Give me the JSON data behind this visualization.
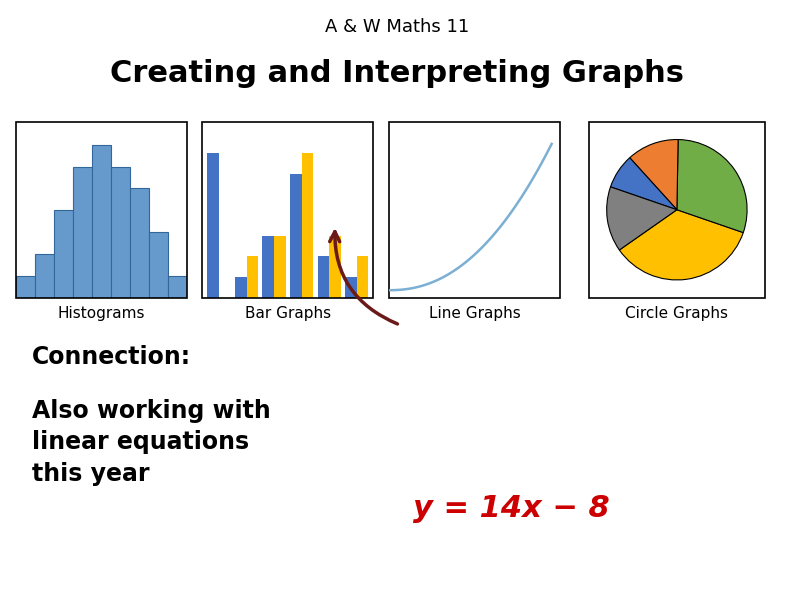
{
  "title_small": "A & W Maths 11",
  "title_large": "Creating and Interpreting Graphs",
  "title_small_fontsize": 13,
  "title_large_fontsize": 22,
  "hist_values": [
    1,
    2,
    4,
    6,
    7,
    6,
    5,
    3,
    1
  ],
  "hist_color": "#6699CC",
  "hist_edgecolor": "#336699",
  "bar_heights_blue": [
    7,
    1,
    3,
    6,
    2,
    1
  ],
  "bar_heights_yellow": [
    0,
    2,
    3,
    7,
    3,
    2
  ],
  "bar_color_blue": "#4472C4",
  "bar_color_yellow": "#FFC000",
  "pie_sizes": [
    35,
    30,
    12,
    8,
    15
  ],
  "pie_colors": [
    "#FFC000",
    "#70AD47",
    "#ED7D31",
    "#4472C4",
    "#808080"
  ],
  "pie_startangle": 215,
  "labels_fontsize": 11,
  "connection_text": "Connection:",
  "also_text": "Also working with\nlinear equations\nthis year",
  "equation_text": "y = 14x − 8",
  "equation_color": "#CC0000",
  "connection_fontsize": 17,
  "also_fontsize": 17,
  "equation_fontsize": 22,
  "bg_color": "#FFFFFF",
  "text_color": "#000000",
  "box_labels": [
    "Histograms",
    "Bar Graphs",
    "Line Graphs",
    "Circle Graphs"
  ]
}
